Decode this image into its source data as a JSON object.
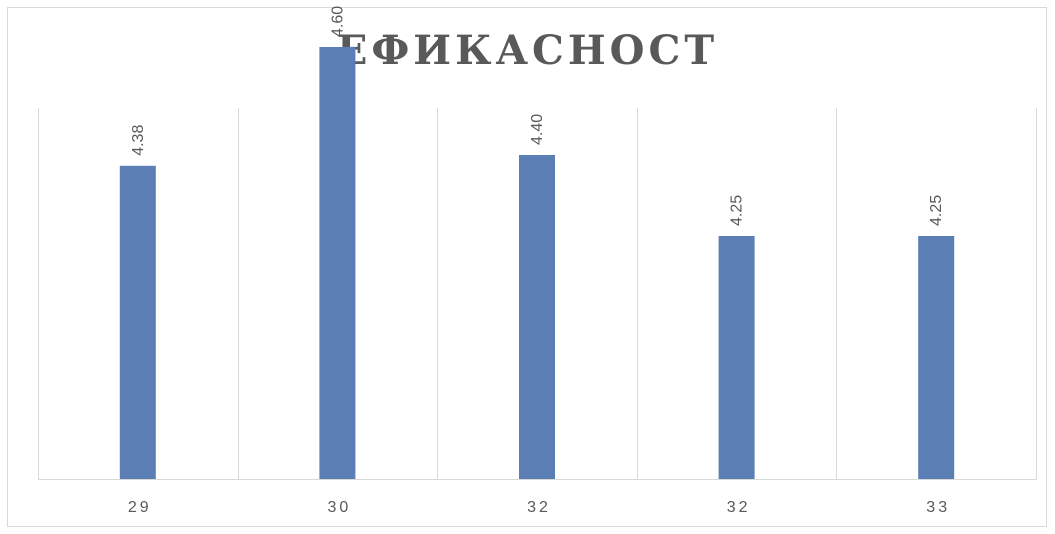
{
  "chart_data": {
    "type": "bar",
    "title": "ЕФИКАСНОСТ",
    "categories": [
      "29",
      "30",
      "32",
      "32",
      "33"
    ],
    "values": [
      4.38,
      4.6,
      4.4,
      4.25,
      4.25
    ],
    "data_labels": [
      "4.38",
      "4.60",
      "4.40",
      "4.25",
      "4.25"
    ],
    "xlabel": "",
    "ylabel": "",
    "y_axis_visible": false,
    "grid": "vertical",
    "legend": "none",
    "bar_color": "#5b7fb4",
    "gridline_color": "#d9d9d9",
    "text_color": "#595959"
  }
}
